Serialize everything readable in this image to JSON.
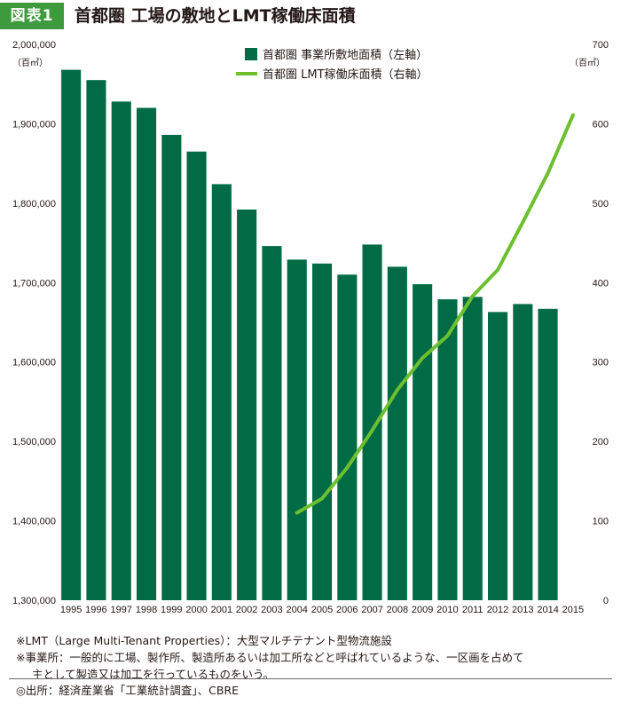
{
  "header": {
    "figure_label": "図表1",
    "title": "首都圏 工場の敷地とLMT稼働床面積"
  },
  "colors": {
    "badge": "#3d9a3d",
    "bar": "#006b45",
    "line": "#6cbf2e"
  },
  "chart_data": {
    "type": "bar+line",
    "categories": [
      "1995",
      "1996",
      "1997",
      "1998",
      "1999",
      "2000",
      "2001",
      "2002",
      "2003",
      "2004",
      "2005",
      "2006",
      "2007",
      "2008",
      "2009",
      "2010",
      "2011",
      "2012",
      "2013",
      "2014",
      "2015"
    ],
    "left_axis": {
      "unit": "（百㎡）",
      "ylim": [
        1300000,
        2000000
      ],
      "ticks": [
        1300000,
        1400000,
        1500000,
        1600000,
        1700000,
        1800000,
        1900000,
        2000000
      ],
      "tick_labels": [
        "1,300,000",
        "1,400,000",
        "1,500,000",
        "1,600,000",
        "1,700,000",
        "1,800,000",
        "1,900,000",
        "2,000,000"
      ]
    },
    "right_axis": {
      "unit": "（百㎡）",
      "ylim": [
        0,
        700
      ],
      "ticks": [
        0,
        100,
        200,
        300,
        400,
        500,
        600,
        700
      ],
      "tick_labels": [
        "0",
        "100",
        "200",
        "300",
        "400",
        "500",
        "600",
        "700"
      ]
    },
    "series": [
      {
        "name": "首都圏 事業所敷地面積（左軸）",
        "type": "bar",
        "axis": "left",
        "values": [
          1968000,
          1955000,
          1928000,
          1920000,
          1886000,
          1865000,
          1824000,
          1792000,
          1746000,
          1729000,
          1724000,
          1710000,
          1748000,
          1720000,
          1698000,
          1679000,
          1682000,
          1663000,
          1673000,
          1667000,
          null
        ]
      },
      {
        "name": "首都圏 LMT稼働床面積（右軸）",
        "type": "line",
        "axis": "right",
        "values": [
          null,
          null,
          null,
          null,
          null,
          null,
          null,
          null,
          null,
          110,
          128,
          167,
          214,
          265,
          305,
          333,
          383,
          416,
          476,
          538,
          611
        ]
      }
    ],
    "legend_position": "top-center"
  },
  "notes": {
    "lmt": "※LMT（Large Multi-Tenant Properties）：大型マルチテナント型物流施設",
    "jigyosho_1": "※事業所：一般的に工場、製作所、製造所あるいは加工所などと呼ばれているような、一区画を占めて",
    "jigyosho_2": "主として製造又は加工を行っているものをいう。"
  },
  "source": "◎出所：経済産業省「工業統計調査」、CBRE"
}
